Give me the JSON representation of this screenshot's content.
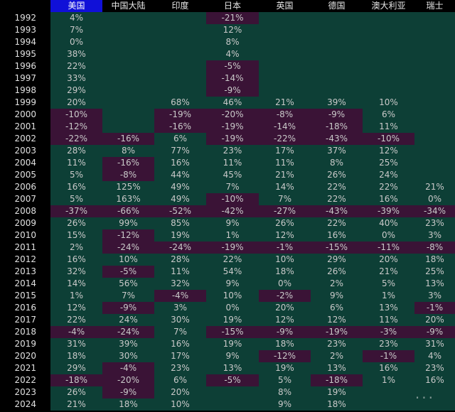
{
  "columns": [
    "美国",
    "中国大陆",
    "印度",
    "日本",
    "英国",
    "德国",
    "澳大利亚",
    "瑞士"
  ],
  "active_column": 0,
  "colors": {
    "positive_bg": "#0d3f36",
    "negative_bg": "#3a1336",
    "header_active": "#1010d8"
  },
  "rows": [
    {
      "year": "1992",
      "values": [
        "4%",
        "",
        "",
        "-21%",
        "",
        "",
        "",
        ""
      ]
    },
    {
      "year": "1993",
      "values": [
        "7%",
        "",
        "",
        "12%",
        "",
        "",
        "",
        ""
      ]
    },
    {
      "year": "1994",
      "values": [
        "0%",
        "",
        "",
        "8%",
        "",
        "",
        "",
        ""
      ]
    },
    {
      "year": "1995",
      "values": [
        "38%",
        "",
        "",
        "4%",
        "",
        "",
        "",
        ""
      ]
    },
    {
      "year": "1996",
      "values": [
        "22%",
        "",
        "",
        "-5%",
        "",
        "",
        "",
        ""
      ]
    },
    {
      "year": "1997",
      "values": [
        "33%",
        "",
        "",
        "-14%",
        "",
        "",
        "",
        ""
      ]
    },
    {
      "year": "1998",
      "values": [
        "29%",
        "",
        "",
        "-9%",
        "",
        "",
        "",
        ""
      ]
    },
    {
      "year": "1999",
      "values": [
        "20%",
        "",
        "68%",
        "46%",
        "21%",
        "39%",
        "10%",
        ""
      ]
    },
    {
      "year": "2000",
      "values": [
        "-10%",
        "",
        "-19%",
        "-20%",
        "-8%",
        "-9%",
        "6%",
        ""
      ]
    },
    {
      "year": "2001",
      "values": [
        "-12%",
        "",
        "-16%",
        "-19%",
        "-14%",
        "-18%",
        "11%",
        ""
      ]
    },
    {
      "year": "2002",
      "values": [
        "-22%",
        "-16%",
        "6%",
        "-19%",
        "-22%",
        "-43%",
        "-10%",
        ""
      ]
    },
    {
      "year": "2003",
      "values": [
        "28%",
        "8%",
        "77%",
        "23%",
        "17%",
        "37%",
        "12%",
        ""
      ]
    },
    {
      "year": "2004",
      "values": [
        "11%",
        "-16%",
        "16%",
        "11%",
        "11%",
        "8%",
        "25%",
        ""
      ]
    },
    {
      "year": "2005",
      "values": [
        "5%",
        "-8%",
        "44%",
        "45%",
        "21%",
        "26%",
        "24%",
        ""
      ]
    },
    {
      "year": "2006",
      "values": [
        "16%",
        "125%",
        "49%",
        "7%",
        "14%",
        "22%",
        "22%",
        "21%"
      ]
    },
    {
      "year": "2007",
      "values": [
        "5%",
        "163%",
        "49%",
        "-10%",
        "7%",
        "22%",
        "16%",
        "0%"
      ]
    },
    {
      "year": "2008",
      "values": [
        "-37%",
        "-66%",
        "-52%",
        "-42%",
        "-27%",
        "-43%",
        "-39%",
        "-34%"
      ]
    },
    {
      "year": "2009",
      "values": [
        "26%",
        "99%",
        "85%",
        "9%",
        "26%",
        "22%",
        "40%",
        "23%"
      ]
    },
    {
      "year": "2010",
      "values": [
        "15%",
        "-12%",
        "19%",
        "1%",
        "12%",
        "16%",
        "0%",
        "3%"
      ]
    },
    {
      "year": "2011",
      "values": [
        "2%",
        "-24%",
        "-24%",
        "-19%",
        "-1%",
        "-15%",
        "-11%",
        "-8%"
      ]
    },
    {
      "year": "2012",
      "values": [
        "16%",
        "10%",
        "28%",
        "22%",
        "10%",
        "29%",
        "20%",
        "18%"
      ]
    },
    {
      "year": "2013",
      "values": [
        "32%",
        "-5%",
        "11%",
        "54%",
        "18%",
        "26%",
        "21%",
        "25%"
      ]
    },
    {
      "year": "2014",
      "values": [
        "14%",
        "56%",
        "32%",
        "9%",
        "0%",
        "2%",
        "5%",
        "13%"
      ]
    },
    {
      "year": "2015",
      "values": [
        "1%",
        "7%",
        "-4%",
        "10%",
        "-2%",
        "9%",
        "1%",
        "3%"
      ]
    },
    {
      "year": "2016",
      "values": [
        "12%",
        "-9%",
        "3%",
        "0%",
        "20%",
        "6%",
        "13%",
        "-1%"
      ]
    },
    {
      "year": "2017",
      "values": [
        "22%",
        "24%",
        "30%",
        "19%",
        "12%",
        "12%",
        "11%",
        "20%"
      ]
    },
    {
      "year": "2018",
      "values": [
        "-4%",
        "-24%",
        "7%",
        "-15%",
        "-9%",
        "-19%",
        "-3%",
        "-9%"
      ]
    },
    {
      "year": "2019",
      "values": [
        "31%",
        "39%",
        "16%",
        "19%",
        "18%",
        "23%",
        "23%",
        "31%"
      ]
    },
    {
      "year": "2020",
      "values": [
        "18%",
        "30%",
        "17%",
        "9%",
        "-12%",
        "2%",
        "-1%",
        "4%"
      ]
    },
    {
      "year": "2021",
      "values": [
        "29%",
        "-4%",
        "23%",
        "13%",
        "19%",
        "13%",
        "16%",
        "23%"
      ]
    },
    {
      "year": "2022",
      "values": [
        "-18%",
        "-20%",
        "6%",
        "-5%",
        "5%",
        "-18%",
        "1%",
        "16%"
      ]
    },
    {
      "year": "2023",
      "values": [
        "26%",
        "-9%",
        "20%",
        "",
        "8%",
        "19%",
        "",
        ""
      ]
    },
    {
      "year": "2024",
      "values": [
        "21%",
        "18%",
        "10%",
        "",
        "9%",
        "18%",
        "",
        ""
      ]
    }
  ],
  "watermark": "..."
}
